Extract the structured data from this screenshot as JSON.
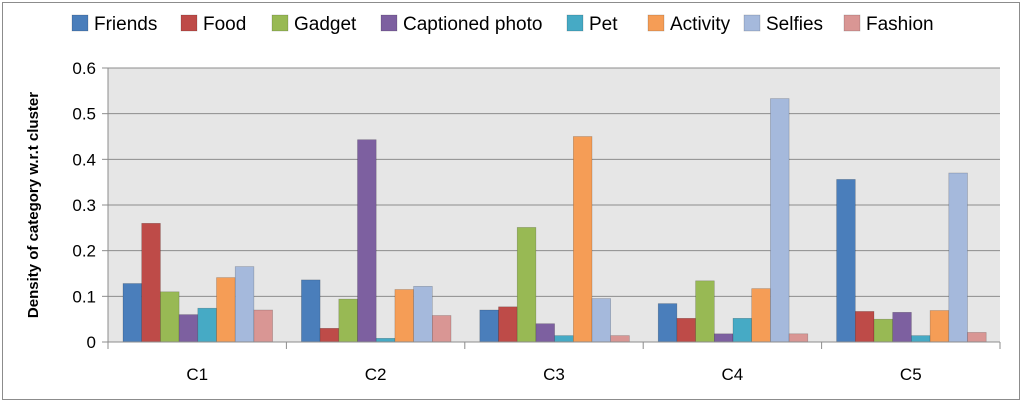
{
  "chart_data": {
    "type": "bar",
    "title": "",
    "xlabel": "",
    "ylabel": "Density of category w.r.t cluster",
    "categories": [
      "C1",
      "C2",
      "C3",
      "C4",
      "C5"
    ],
    "ylim": [
      0,
      0.6
    ],
    "yticks": [
      "0",
      "0.1",
      "0.2",
      "0.3",
      "0.4",
      "0.5",
      "0.6"
    ],
    "grid": true,
    "legend_position": "top",
    "series": [
      {
        "name": "Friends",
        "color": "#4a7ebb",
        "values": [
          0.128,
          0.136,
          0.07,
          0.084,
          0.356
        ]
      },
      {
        "name": "Food",
        "color": "#be4b48",
        "values": [
          0.26,
          0.03,
          0.077,
          0.052,
          0.067
        ]
      },
      {
        "name": "Gadget",
        "color": "#98b954",
        "values": [
          0.11,
          0.094,
          0.251,
          0.134,
          0.05
        ]
      },
      {
        "name": "Captioned photo",
        "color": "#7d60a0",
        "values": [
          0.06,
          0.443,
          0.04,
          0.018,
          0.065
        ]
      },
      {
        "name": "Pet",
        "color": "#46aac5",
        "values": [
          0.074,
          0.008,
          0.014,
          0.052,
          0.014
        ]
      },
      {
        "name": "Activity",
        "color": "#f59d56",
        "values": [
          0.141,
          0.115,
          0.45,
          0.117,
          0.069
        ]
      },
      {
        "name": "Selfies",
        "color": "#a5b9dc",
        "values": [
          0.165,
          0.122,
          0.095,
          0.533,
          0.37
        ]
      },
      {
        "name": "Fashion",
        "color": "#d99694",
        "values": [
          0.07,
          0.058,
          0.014,
          0.018,
          0.021
        ]
      }
    ]
  }
}
